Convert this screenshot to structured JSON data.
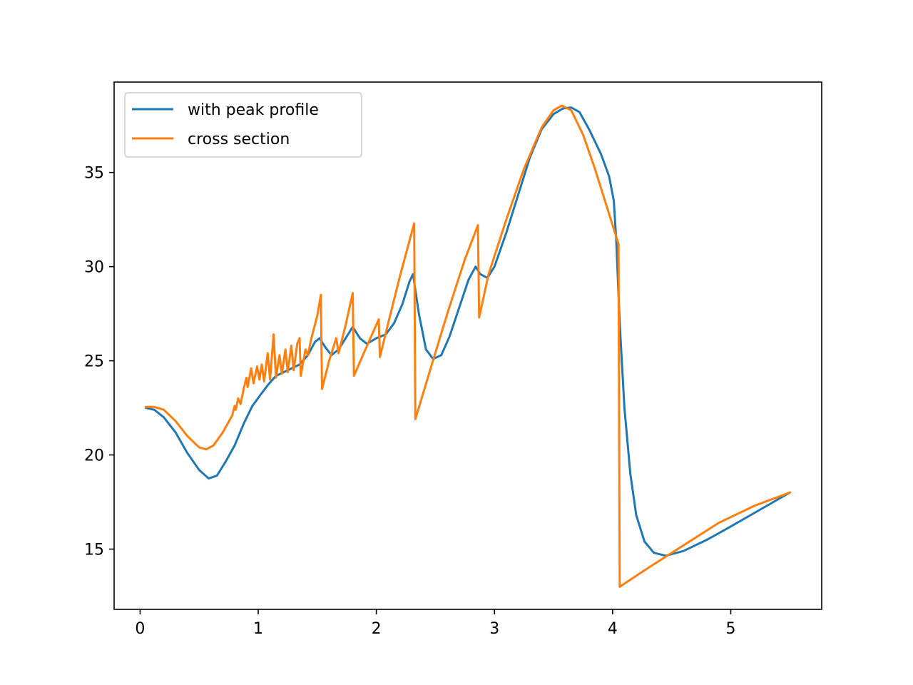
{
  "chart_data": {
    "type": "line",
    "title": "",
    "xlabel": "",
    "ylabel": "",
    "xlim": [
      -0.22,
      5.77
    ],
    "ylim": [
      11.8,
      39.8
    ],
    "grid": false,
    "legend_position": "top-left",
    "x_ticks": [
      0,
      1,
      2,
      3,
      4,
      5
    ],
    "x_tick_labels": [
      "0",
      "1",
      "2",
      "3",
      "4",
      "5"
    ],
    "y_ticks": [
      15,
      20,
      25,
      30,
      35
    ],
    "y_tick_labels": [
      "15",
      "20",
      "25",
      "30",
      "35"
    ],
    "series": [
      {
        "name": "with peak profile",
        "color": "#1f77b4",
        "points": [
          [
            0.05,
            22.5
          ],
          [
            0.12,
            22.4
          ],
          [
            0.2,
            22.0
          ],
          [
            0.3,
            21.2
          ],
          [
            0.4,
            20.1
          ],
          [
            0.5,
            19.2
          ],
          [
            0.58,
            18.75
          ],
          [
            0.65,
            18.9
          ],
          [
            0.72,
            19.6
          ],
          [
            0.8,
            20.5
          ],
          [
            0.88,
            21.7
          ],
          [
            0.95,
            22.6
          ],
          [
            1.02,
            23.2
          ],
          [
            1.08,
            23.7
          ],
          [
            1.15,
            24.2
          ],
          [
            1.25,
            24.5
          ],
          [
            1.35,
            24.8
          ],
          [
            1.42,
            25.3
          ],
          [
            1.48,
            26.0
          ],
          [
            1.52,
            26.2
          ],
          [
            1.57,
            25.7
          ],
          [
            1.62,
            25.3
          ],
          [
            1.68,
            25.6
          ],
          [
            1.75,
            26.3
          ],
          [
            1.8,
            26.8
          ],
          [
            1.86,
            26.2
          ],
          [
            1.92,
            25.9
          ],
          [
            2.0,
            26.2
          ],
          [
            2.08,
            26.4
          ],
          [
            2.15,
            27.0
          ],
          [
            2.22,
            28.0
          ],
          [
            2.28,
            29.2
          ],
          [
            2.31,
            29.6
          ],
          [
            2.36,
            27.5
          ],
          [
            2.42,
            25.6
          ],
          [
            2.48,
            25.1
          ],
          [
            2.55,
            25.3
          ],
          [
            2.62,
            26.3
          ],
          [
            2.7,
            27.8
          ],
          [
            2.78,
            29.3
          ],
          [
            2.84,
            30.0
          ],
          [
            2.88,
            29.6
          ],
          [
            2.94,
            29.4
          ],
          [
            3.0,
            30.0
          ],
          [
            3.1,
            31.8
          ],
          [
            3.2,
            33.8
          ],
          [
            3.3,
            35.8
          ],
          [
            3.4,
            37.3
          ],
          [
            3.5,
            38.1
          ],
          [
            3.58,
            38.4
          ],
          [
            3.65,
            38.45
          ],
          [
            3.72,
            38.2
          ],
          [
            3.8,
            37.3
          ],
          [
            3.9,
            36.0
          ],
          [
            3.97,
            34.8
          ],
          [
            4.01,
            33.5
          ],
          [
            4.03,
            31.5
          ],
          [
            4.06,
            27.0
          ],
          [
            4.1,
            22.5
          ],
          [
            4.15,
            19.0
          ],
          [
            4.2,
            16.8
          ],
          [
            4.27,
            15.4
          ],
          [
            4.35,
            14.8
          ],
          [
            4.45,
            14.65
          ],
          [
            4.6,
            14.9
          ],
          [
            4.8,
            15.5
          ],
          [
            5.0,
            16.2
          ],
          [
            5.25,
            17.1
          ],
          [
            5.5,
            18.0
          ]
        ]
      },
      {
        "name": "cross section",
        "color": "#ff7f0e",
        "points": [
          [
            0.05,
            22.55
          ],
          [
            0.12,
            22.55
          ],
          [
            0.2,
            22.4
          ],
          [
            0.3,
            21.8
          ],
          [
            0.4,
            21.0
          ],
          [
            0.5,
            20.4
          ],
          [
            0.56,
            20.3
          ],
          [
            0.62,
            20.5
          ],
          [
            0.7,
            21.2
          ],
          [
            0.78,
            22.1
          ],
          [
            0.8,
            22.6
          ],
          [
            0.81,
            22.4
          ],
          [
            0.83,
            23.0
          ],
          [
            0.85,
            22.7
          ],
          [
            0.88,
            23.6
          ],
          [
            0.9,
            24.1
          ],
          [
            0.91,
            23.6
          ],
          [
            0.94,
            24.6
          ],
          [
            0.96,
            23.8
          ],
          [
            0.99,
            24.7
          ],
          [
            1.01,
            24.0
          ],
          [
            1.03,
            24.8
          ],
          [
            1.05,
            23.9
          ],
          [
            1.08,
            25.4
          ],
          [
            1.1,
            24.0
          ],
          [
            1.13,
            26.4
          ],
          [
            1.15,
            24.1
          ],
          [
            1.18,
            25.3
          ],
          [
            1.2,
            24.3
          ],
          [
            1.23,
            25.6
          ],
          [
            1.25,
            24.4
          ],
          [
            1.28,
            25.8
          ],
          [
            1.3,
            24.5
          ],
          [
            1.33,
            25.9
          ],
          [
            1.35,
            26.2
          ],
          [
            1.36,
            24.2
          ],
          [
            1.4,
            25.6
          ],
          [
            1.42,
            25.3
          ],
          [
            1.45,
            26.2
          ],
          [
            1.5,
            27.4
          ],
          [
            1.53,
            28.5
          ],
          [
            1.54,
            23.5
          ],
          [
            1.6,
            25.0
          ],
          [
            1.66,
            26.2
          ],
          [
            1.68,
            25.4
          ],
          [
            1.74,
            26.9
          ],
          [
            1.8,
            28.6
          ],
          [
            1.81,
            24.2
          ],
          [
            1.9,
            25.5
          ],
          [
            2.02,
            27.2
          ],
          [
            2.03,
            25.2
          ],
          [
            2.1,
            27.0
          ],
          [
            2.2,
            29.5
          ],
          [
            2.32,
            32.3
          ],
          [
            2.33,
            21.9
          ],
          [
            2.45,
            24.4
          ],
          [
            2.6,
            27.5
          ],
          [
            2.75,
            30.4
          ],
          [
            2.86,
            32.2
          ],
          [
            2.87,
            27.3
          ],
          [
            2.95,
            29.6
          ],
          [
            3.1,
            32.5
          ],
          [
            3.25,
            35.2
          ],
          [
            3.4,
            37.4
          ],
          [
            3.5,
            38.3
          ],
          [
            3.57,
            38.55
          ],
          [
            3.65,
            38.3
          ],
          [
            3.75,
            37.0
          ],
          [
            3.85,
            35.2
          ],
          [
            3.95,
            33.2
          ],
          [
            4.05,
            31.2
          ],
          [
            4.06,
            13.0
          ],
          [
            4.3,
            14.0
          ],
          [
            4.6,
            15.2
          ],
          [
            4.9,
            16.4
          ],
          [
            5.2,
            17.3
          ],
          [
            5.5,
            18.0
          ]
        ]
      }
    ]
  }
}
